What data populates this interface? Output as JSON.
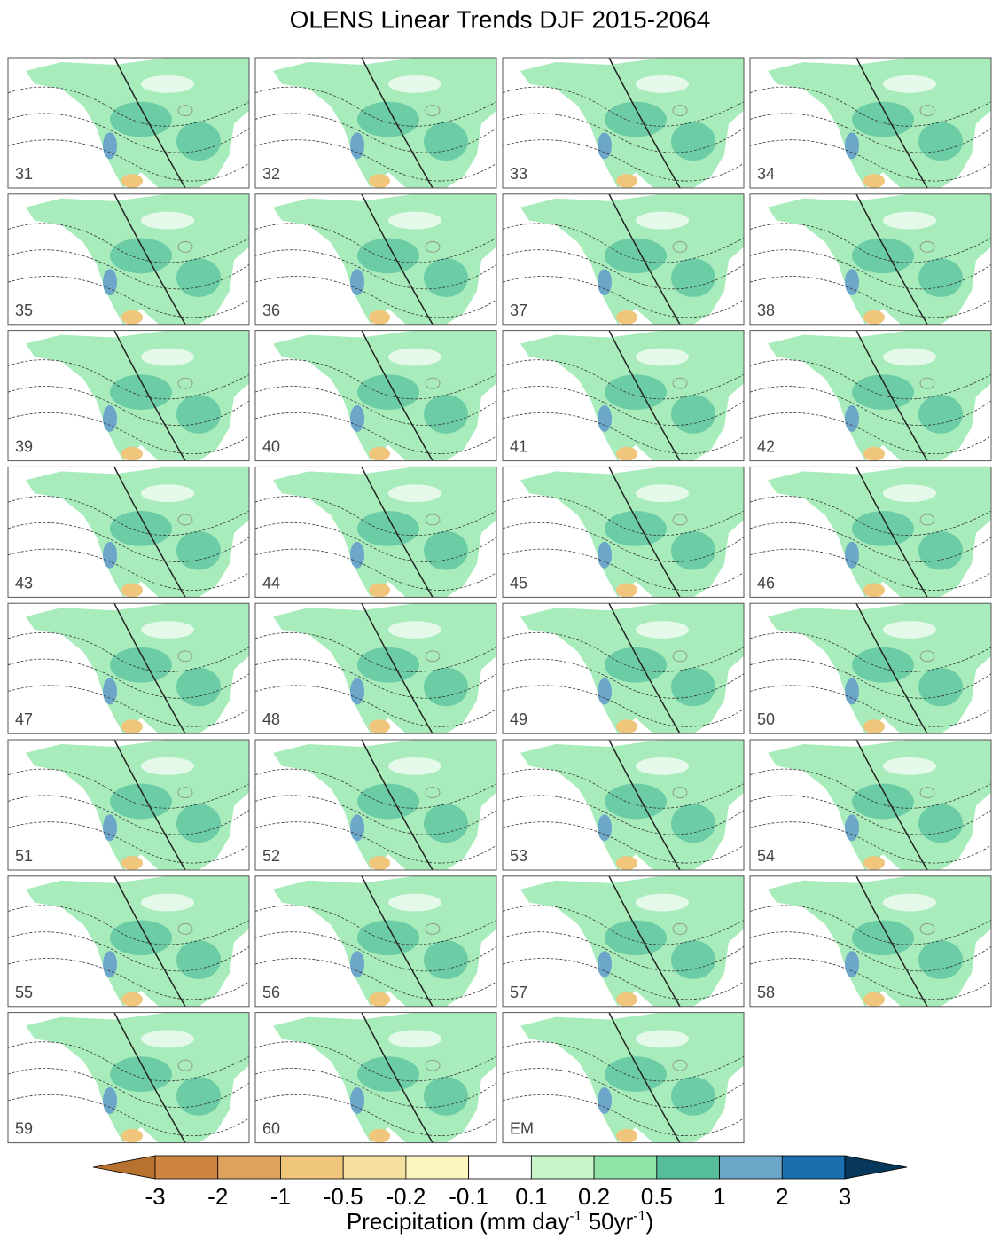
{
  "title": "OLENS Linear Trends DJF 2015-2064",
  "panels": [
    "31",
    "32",
    "33",
    "34",
    "35",
    "36",
    "37",
    "38",
    "39",
    "40",
    "41",
    "42",
    "43",
    "44",
    "45",
    "46",
    "47",
    "48",
    "49",
    "50",
    "51",
    "52",
    "53",
    "54",
    "55",
    "56",
    "57",
    "58",
    "59",
    "60",
    "EM"
  ],
  "colorbar": {
    "ticks": [
      -3,
      -2,
      -1,
      -0.5,
      -0.2,
      -0.1,
      0.1,
      0.2,
      0.5,
      1,
      2,
      3
    ],
    "colors": [
      "#b8722f",
      "#cd853f",
      "#dfa35f",
      "#f0c67d",
      "#f5dfa0",
      "#fdf5c0",
      "#ffffff",
      "#c8f5c8",
      "#8fe3a7",
      "#55bd9c",
      "#6ca6c8",
      "#1a6faf",
      "#07375a"
    ],
    "label_parts": [
      {
        "text": "Precipitation (mm day"
      },
      {
        "sup": "-1"
      },
      {
        "text": " 50yr"
      },
      {
        "sup": "-1"
      },
      {
        "text": ")"
      }
    ]
  }
}
